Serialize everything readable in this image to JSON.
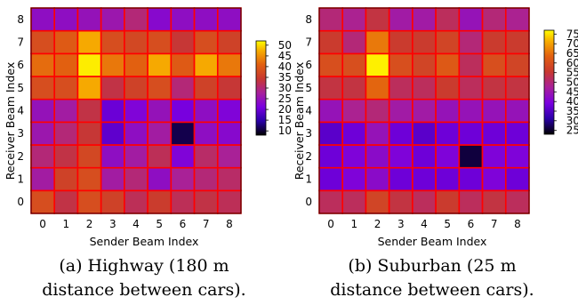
{
  "chart_data": [
    {
      "type": "heatmap",
      "xlabel": "Sender Beam Index",
      "ylabel": "Receiver Beam Index",
      "x_ticks": [
        "0",
        "1",
        "2",
        "3",
        "4",
        "5",
        "6",
        "7",
        "8"
      ],
      "y_ticks": [
        "0",
        "1",
        "2",
        "3",
        "4",
        "5",
        "6",
        "7",
        "8"
      ],
      "colorbar_ticks": [
        "10",
        "15",
        "20",
        "25",
        "30",
        "35",
        "40",
        "45",
        "50"
      ],
      "colorbar_range": [
        8,
        52
      ],
      "caption_line1": "(a) Highway (180 m",
      "caption_line2": "distance between cars).",
      "values": [
        [
          38,
          33,
          38,
          36,
          32,
          35,
          32,
          33,
          32
        ],
        [
          27,
          36,
          38,
          27,
          30,
          24,
          28,
          30,
          31
        ],
        [
          30,
          33,
          37,
          24,
          27,
          32,
          22,
          31,
          28
        ],
        [
          26,
          30,
          34,
          19,
          24,
          27,
          11,
          24,
          23
        ],
        [
          25,
          27,
          33,
          20,
          22,
          25,
          21,
          24,
          22
        ],
        [
          38,
          38,
          47,
          33,
          36,
          38,
          30,
          36,
          34
        ],
        [
          42,
          41,
          51,
          43,
          41,
          47,
          40,
          47,
          43
        ],
        [
          38,
          40,
          47,
          38,
          37,
          38,
          34,
          38,
          36
        ],
        [
          24,
          24,
          25,
          26,
          30,
          23,
          24,
          24,
          24
        ]
      ]
    },
    {
      "type": "heatmap",
      "xlabel": "Sender Beam Index",
      "ylabel": "Receiver Beam Index",
      "x_ticks": [
        "0",
        "1",
        "2",
        "3",
        "4",
        "5",
        "6",
        "7",
        "8"
      ],
      "y_ticks": [
        "0",
        "1",
        "2",
        "3",
        "4",
        "5",
        "6",
        "7",
        "8"
      ],
      "colorbar_ticks": [
        "25",
        "30",
        "35",
        "40",
        "45",
        "50",
        "55",
        "60",
        "65",
        "70",
        "75"
      ],
      "colorbar_range": [
        23,
        77
      ],
      "caption_line1": "(b) Suburban (25 m",
      "caption_line2": "distance between cars).",
      "values": [
        [
          52,
          52,
          58,
          54,
          52,
          56,
          52,
          54,
          52
        ],
        [
          38,
          40,
          42,
          38,
          38,
          38,
          38,
          40,
          38
        ],
        [
          38,
          40,
          42,
          40,
          38,
          40,
          26,
          40,
          40
        ],
        [
          36,
          38,
          44,
          38,
          36,
          38,
          38,
          38,
          38
        ],
        [
          44,
          48,
          50,
          46,
          46,
          44,
          44,
          44,
          44
        ],
        [
          54,
          54,
          64,
          52,
          52,
          56,
          52,
          54,
          54
        ],
        [
          60,
          60,
          76,
          60,
          58,
          62,
          52,
          60,
          58
        ],
        [
          56,
          50,
          66,
          56,
          56,
          58,
          50,
          56,
          56
        ],
        [
          50,
          48,
          54,
          46,
          46,
          52,
          44,
          50,
          48
        ]
      ]
    }
  ]
}
